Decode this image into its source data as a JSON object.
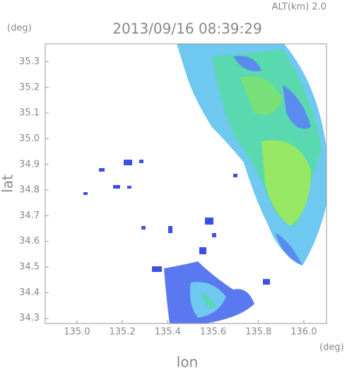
{
  "chart_data": {
    "type": "radar-map",
    "annotation": "ALT(km) 2.0",
    "title": "2013/09/16 08:39:29",
    "y_unit": "(deg)",
    "x_unit": "(deg)",
    "xlabel": "lon",
    "ylabel": "lat",
    "xlim": [
      134.86,
      136.1
    ],
    "ylim": [
      34.28,
      35.37
    ],
    "xticks": [
      {
        "value": 135.0,
        "label": "135.0"
      },
      135.2,
      135.4,
      135.6,
      135.8,
      {
        "value": 136.0,
        "label": "136.0"
      }
    ],
    "yticks": [
      34.3,
      34.4,
      34.5,
      34.6,
      34.7,
      34.8,
      34.9,
      {
        "value": 35.0,
        "label": "35.0"
      },
      35.1,
      35.2,
      35.3
    ]
  }
}
